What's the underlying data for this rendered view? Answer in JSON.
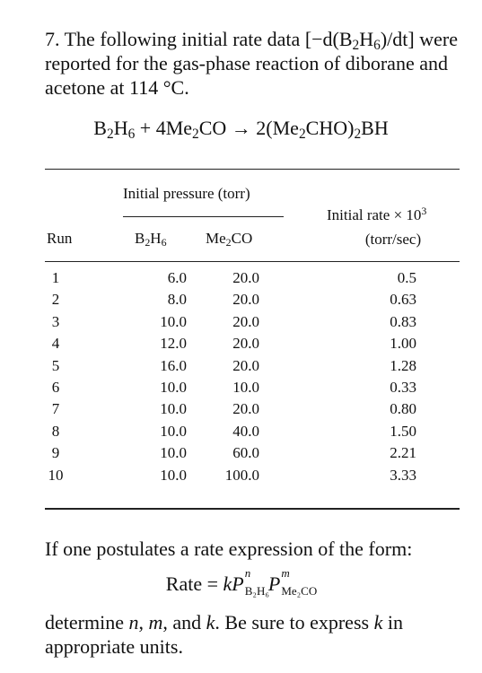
{
  "problem_number": "7.",
  "intro": {
    "part1": "The following initial rate data ",
    "part2": " were reported for the gas-phase reaction of diborane and acetone at 114 °C."
  },
  "rate_definition": {
    "open": "[−d(B",
    "sub1": "2",
    "mid": "H",
    "sub2": "6",
    "close": ")/dt]"
  },
  "reaction": {
    "reactant1": {
      "p1": "B",
      "s1": "2",
      "p2": "H",
      "s2": "6"
    },
    "plus": " + ",
    "reactant2": {
      "p1": "4Me",
      "s1": "2",
      "p2": "CO"
    },
    "arrow": " → ",
    "product": {
      "p1": "2(Me",
      "s1": "2",
      "p2": "CHO)",
      "s2": "2",
      "p3": "BH"
    }
  },
  "table": {
    "group_header": "Initial pressure (torr)",
    "col_run": "Run",
    "col_b2h6": {
      "p1": "B",
      "s1": "2",
      "p2": "H",
      "s2": "6"
    },
    "col_me2co": {
      "p1": "Me",
      "s1": "2",
      "p2": "CO"
    },
    "col_rate_line1": "Initial rate × 10",
    "col_rate_exp": "3",
    "col_rate_line2": "(torr/sec)",
    "rows": [
      {
        "run": "1",
        "b2h6": "6.0",
        "me2co": "20.0",
        "rate": "0.5"
      },
      {
        "run": "2",
        "b2h6": "8.0",
        "me2co": "20.0",
        "rate": "0.63"
      },
      {
        "run": "3",
        "b2h6": "10.0",
        "me2co": "20.0",
        "rate": "0.83"
      },
      {
        "run": "4",
        "b2h6": "12.0",
        "me2co": "20.0",
        "rate": "1.00"
      },
      {
        "run": "5",
        "b2h6": "16.0",
        "me2co": "20.0",
        "rate": "1.28"
      },
      {
        "run": "6",
        "b2h6": "10.0",
        "me2co": "10.0",
        "rate": "0.33"
      },
      {
        "run": "7",
        "b2h6": "10.0",
        "me2co": "20.0",
        "rate": "0.80"
      },
      {
        "run": "8",
        "b2h6": "10.0",
        "me2co": "40.0",
        "rate": "1.50"
      },
      {
        "run": "9",
        "b2h6": "10.0",
        "me2co": "60.0",
        "rate": "2.21"
      },
      {
        "run": "10",
        "b2h6": "10.0",
        "me2co": "100.0",
        "rate": "3.33"
      }
    ]
  },
  "postulate": "If one postulates a rate expression of the form:",
  "rate_law": {
    "lhs": "Rate",
    "equals": " = ",
    "k": "k",
    "P1": "P",
    "exp1": "n",
    "sub1": "B₂H₆",
    "P2": "P",
    "exp2": "m",
    "sub2": "Me₂CO"
  },
  "determine": {
    "t1": "determine ",
    "n": "n",
    "t2": ", ",
    "m": "m",
    "t3": ", and ",
    "k": "k",
    "t4": ". Be sure to express ",
    "k2": "k",
    "t5": " in appropriate units."
  }
}
